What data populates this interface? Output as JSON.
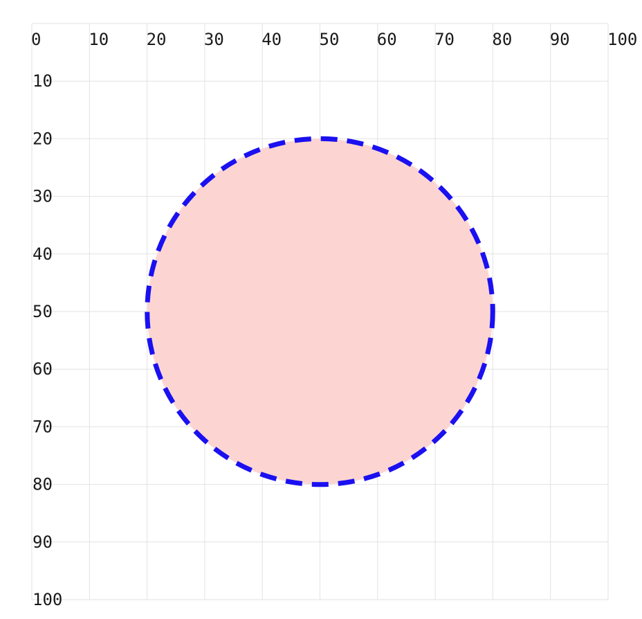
{
  "coordinate_plane": {
    "x_range": [
      0,
      100
    ],
    "y_range": [
      0,
      100
    ],
    "x_ticks": [
      "0",
      "10",
      "20",
      "30",
      "40",
      "50",
      "60",
      "70",
      "80",
      "90",
      "100"
    ],
    "y_ticks": [
      "10",
      "20",
      "30",
      "40",
      "50",
      "60",
      "70",
      "80",
      "90",
      "100"
    ],
    "grid": true,
    "grid_color": "#e2e2e2"
  },
  "shape": {
    "type": "circle",
    "center": [
      50,
      50
    ],
    "radius": 30,
    "fill": "#fcd5d2",
    "stroke": "#1a10f0",
    "stroke_style": "dashed"
  }
}
